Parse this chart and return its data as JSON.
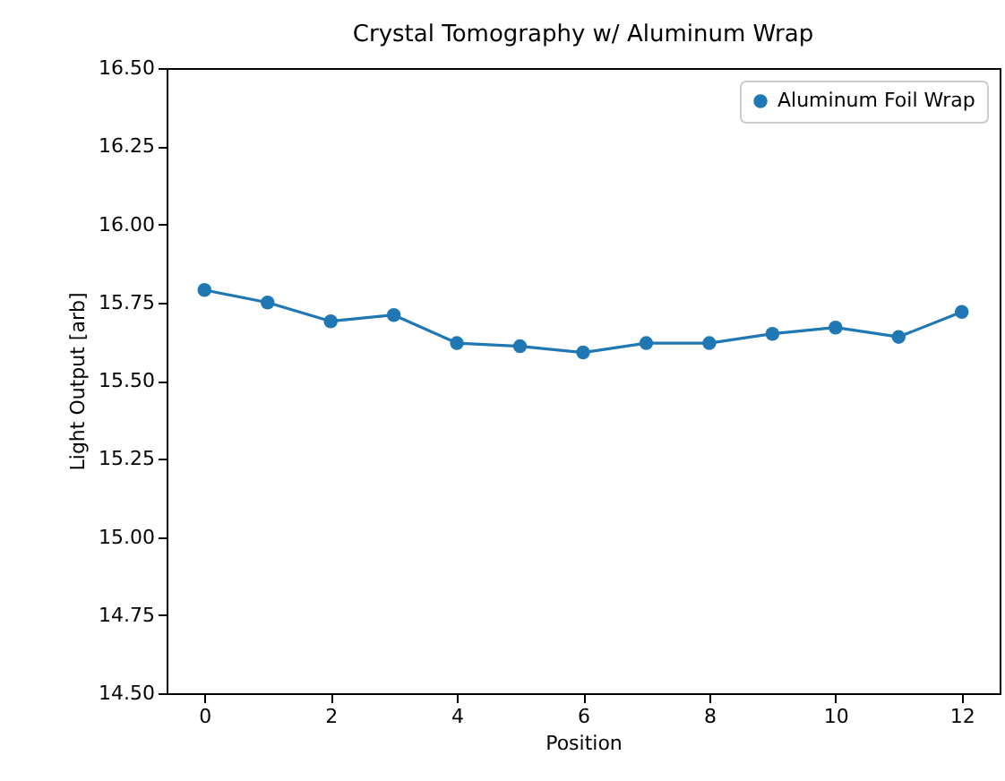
{
  "chart_data": {
    "type": "line",
    "title": "Crystal Tomography w/ Aluminum Wrap",
    "xlabel": "Position",
    "ylabel": "Light Output [arb]",
    "x": [
      0,
      1,
      2,
      3,
      4,
      5,
      6,
      7,
      8,
      9,
      10,
      11,
      12
    ],
    "series": [
      {
        "name": "Aluminum Foil Wrap",
        "color": "#1f77b4",
        "values": [
          15.79,
          15.75,
          15.69,
          15.71,
          15.62,
          15.61,
          15.59,
          15.62,
          15.62,
          15.65,
          15.67,
          15.64,
          15.72
        ]
      }
    ],
    "xlim": [
      -0.6,
      12.6
    ],
    "xticks": [
      0,
      2,
      4,
      6,
      8,
      10,
      12
    ],
    "ylim": [
      14.5,
      16.5
    ],
    "yticks": [
      {
        "value": 14.5,
        "label": "14.50"
      },
      14.75,
      {
        "value": 15,
        "label": "15.00"
      },
      15.25,
      {
        "value": 15.5,
        "label": "15.50"
      },
      15.75,
      {
        "value": 16,
        "label": "16.00"
      },
      16.25,
      {
        "value": 16.5,
        "label": "16.50"
      }
    ],
    "grid": false,
    "legend": "top right",
    "marker": "circle",
    "line_style": "solid"
  }
}
